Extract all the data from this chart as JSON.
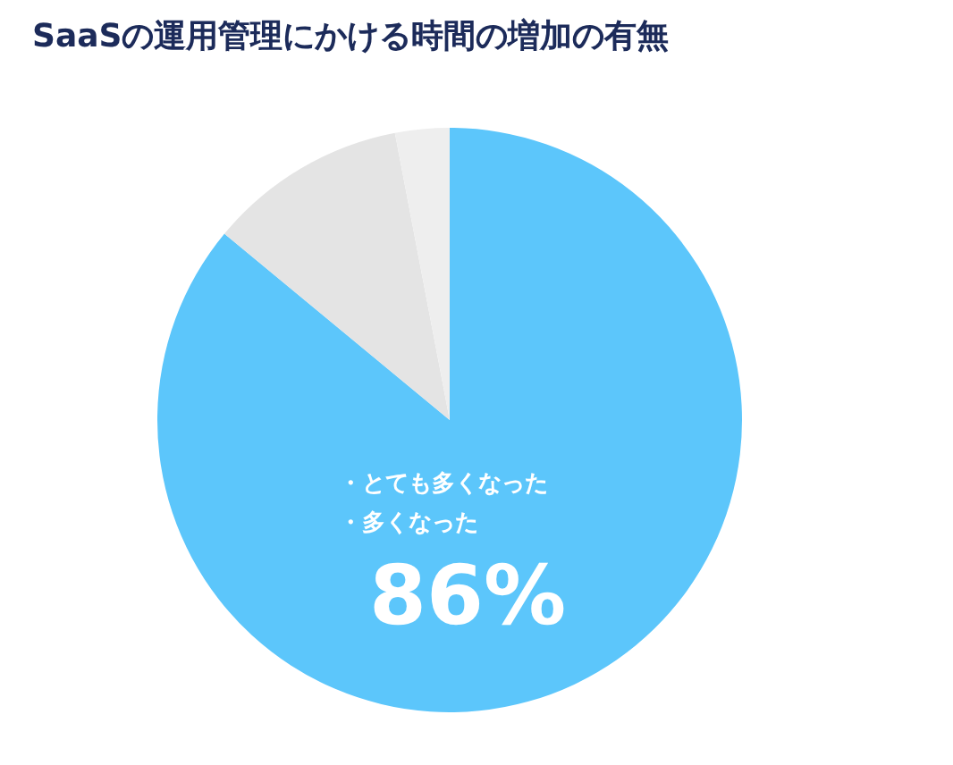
{
  "chart_data": {
    "type": "pie",
    "title": "SaaSの運用管理にかける時間の増加の有無",
    "categories": [
      "・とても多くなった・多くなった",
      null,
      null
    ],
    "values": [
      86,
      11,
      3
    ],
    "colors": [
      "#5cc6fb",
      "#e4e4e4",
      "#eeeeee"
    ],
    "value_labels": [
      "86%",
      null,
      null
    ],
    "legend": false
  }
}
